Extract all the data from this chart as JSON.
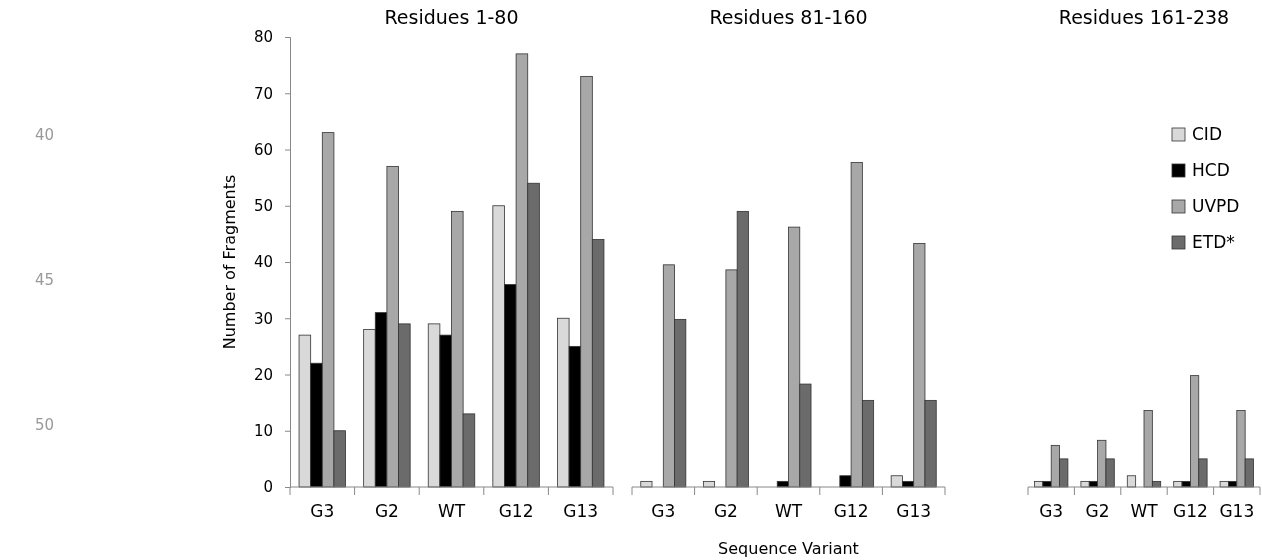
{
  "chart_data": [
    {
      "type": "bar",
      "title": "Residues 1-80",
      "ylabel": "Number of Fragments",
      "categories": [
        "G3",
        "G2",
        "WT",
        "G12",
        "G13"
      ],
      "ylim": [
        0,
        80
      ],
      "yticks": [
        0,
        10,
        20,
        30,
        40,
        50,
        60,
        70,
        80
      ],
      "annotations": [
        "40",
        "45",
        "50"
      ],
      "series": [
        {
          "color": "#d9d9d9",
          "values": [
            27,
            28,
            29,
            50,
            30
          ]
        },
        {
          "color": "#000000",
          "values": [
            22,
            31,
            27,
            36,
            25
          ]
        },
        {
          "color": "#a8a8a8",
          "values": [
            63,
            57,
            49,
            77,
            73
          ]
        },
        {
          "color": "#6b6b6b",
          "values": [
            10,
            29,
            13,
            54,
            44
          ]
        }
      ]
    },
    {
      "type": "bar",
      "title": "Residues 81-160",
      "xlabel": "Sequence Variant",
      "categories": [
        "G3",
        "G2",
        "WT",
        "G12",
        "G13"
      ],
      "ylim": [
        0,
        80
      ],
      "yticks": [
        0,
        10,
        20,
        30,
        40,
        50,
        60,
        70,
        80
      ],
      "tick_labels": "x",
      "series": [
        {
          "color": "#d9d9d9",
          "values": [
            1,
            1,
            0,
            0,
            2
          ]
        },
        {
          "color": "#000000",
          "values": [
            0,
            0,
            1,
            2,
            1
          ]
        },
        {
          "color": "#a8a8a8",
          "values": [
            39.5,
            38.6,
            46.2,
            57.7,
            43.3
          ]
        },
        {
          "color": "#6b6b6b",
          "values": [
            29.8,
            49,
            18.3,
            15.4,
            15.4
          ]
        }
      ]
    },
    {
      "type": "bar",
      "title": "Residues 161-238",
      "categories": [
        "G3",
        "G2",
        "WT",
        "G12",
        "G13"
      ],
      "ylim": [
        0,
        80
      ],
      "yticks": [
        0,
        10,
        20,
        30,
        40,
        50,
        60,
        70,
        80
      ],
      "tick_labels": "x",
      "legend": "right",
      "series": [
        {
          "name": "CID",
          "color": "#d9d9d9",
          "values": [
            1,
            1,
            2,
            1,
            1
          ]
        },
        {
          "name": "HCD",
          "color": "#000000",
          "values": [
            1,
            1,
            0,
            1,
            1
          ]
        },
        {
          "name": "UVPD",
          "color": "#a8a8a8",
          "values": [
            7.4,
            8.3,
            13.6,
            19.8,
            13.6
          ]
        },
        {
          "name": "ETD*",
          "color": "#6b6b6b",
          "values": [
            5,
            5,
            1,
            5,
            5
          ]
        }
      ]
    }
  ]
}
